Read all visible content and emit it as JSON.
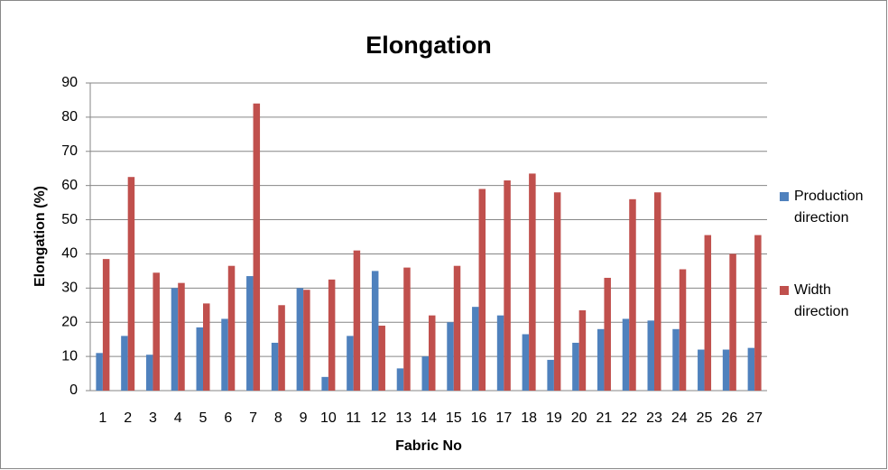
{
  "chart_data": {
    "type": "bar",
    "title": "Elongation",
    "x_label": "Fabric No",
    "y_label": "Elongation (%)",
    "categories": [
      "1",
      "2",
      "3",
      "4",
      "5",
      "6",
      "7",
      "8",
      "9",
      "10",
      "11",
      "12",
      "13",
      "14",
      "15",
      "16",
      "17",
      "18",
      "19",
      "20",
      "21",
      "22",
      "23",
      "24",
      "25",
      "26",
      "27"
    ],
    "series": [
      {
        "name": "Production direction",
        "color": "#4f81bd",
        "values": [
          11,
          16,
          10.5,
          30,
          18.5,
          21,
          33.5,
          14,
          30,
          4,
          16,
          35,
          6.5,
          10,
          20,
          24.5,
          22,
          16.5,
          9,
          14,
          18,
          21,
          20.5,
          18,
          12,
          12,
          12.5
        ]
      },
      {
        "name": "Width direction",
        "color": "#c0504d",
        "values": [
          38.5,
          62.5,
          34.5,
          31.5,
          25.5,
          36.5,
          84,
          25,
          29.5,
          32.5,
          41,
          19,
          36,
          22,
          36.5,
          59,
          61.5,
          63.5,
          58,
          23.5,
          33,
          56,
          58,
          35.5,
          45.5,
          40,
          45.5
        ]
      }
    ],
    "ylim": [
      0,
      90
    ],
    "yticks": [
      0,
      10,
      20,
      30,
      40,
      50,
      60,
      70,
      80,
      90
    ],
    "grid": true,
    "legend": "right"
  }
}
